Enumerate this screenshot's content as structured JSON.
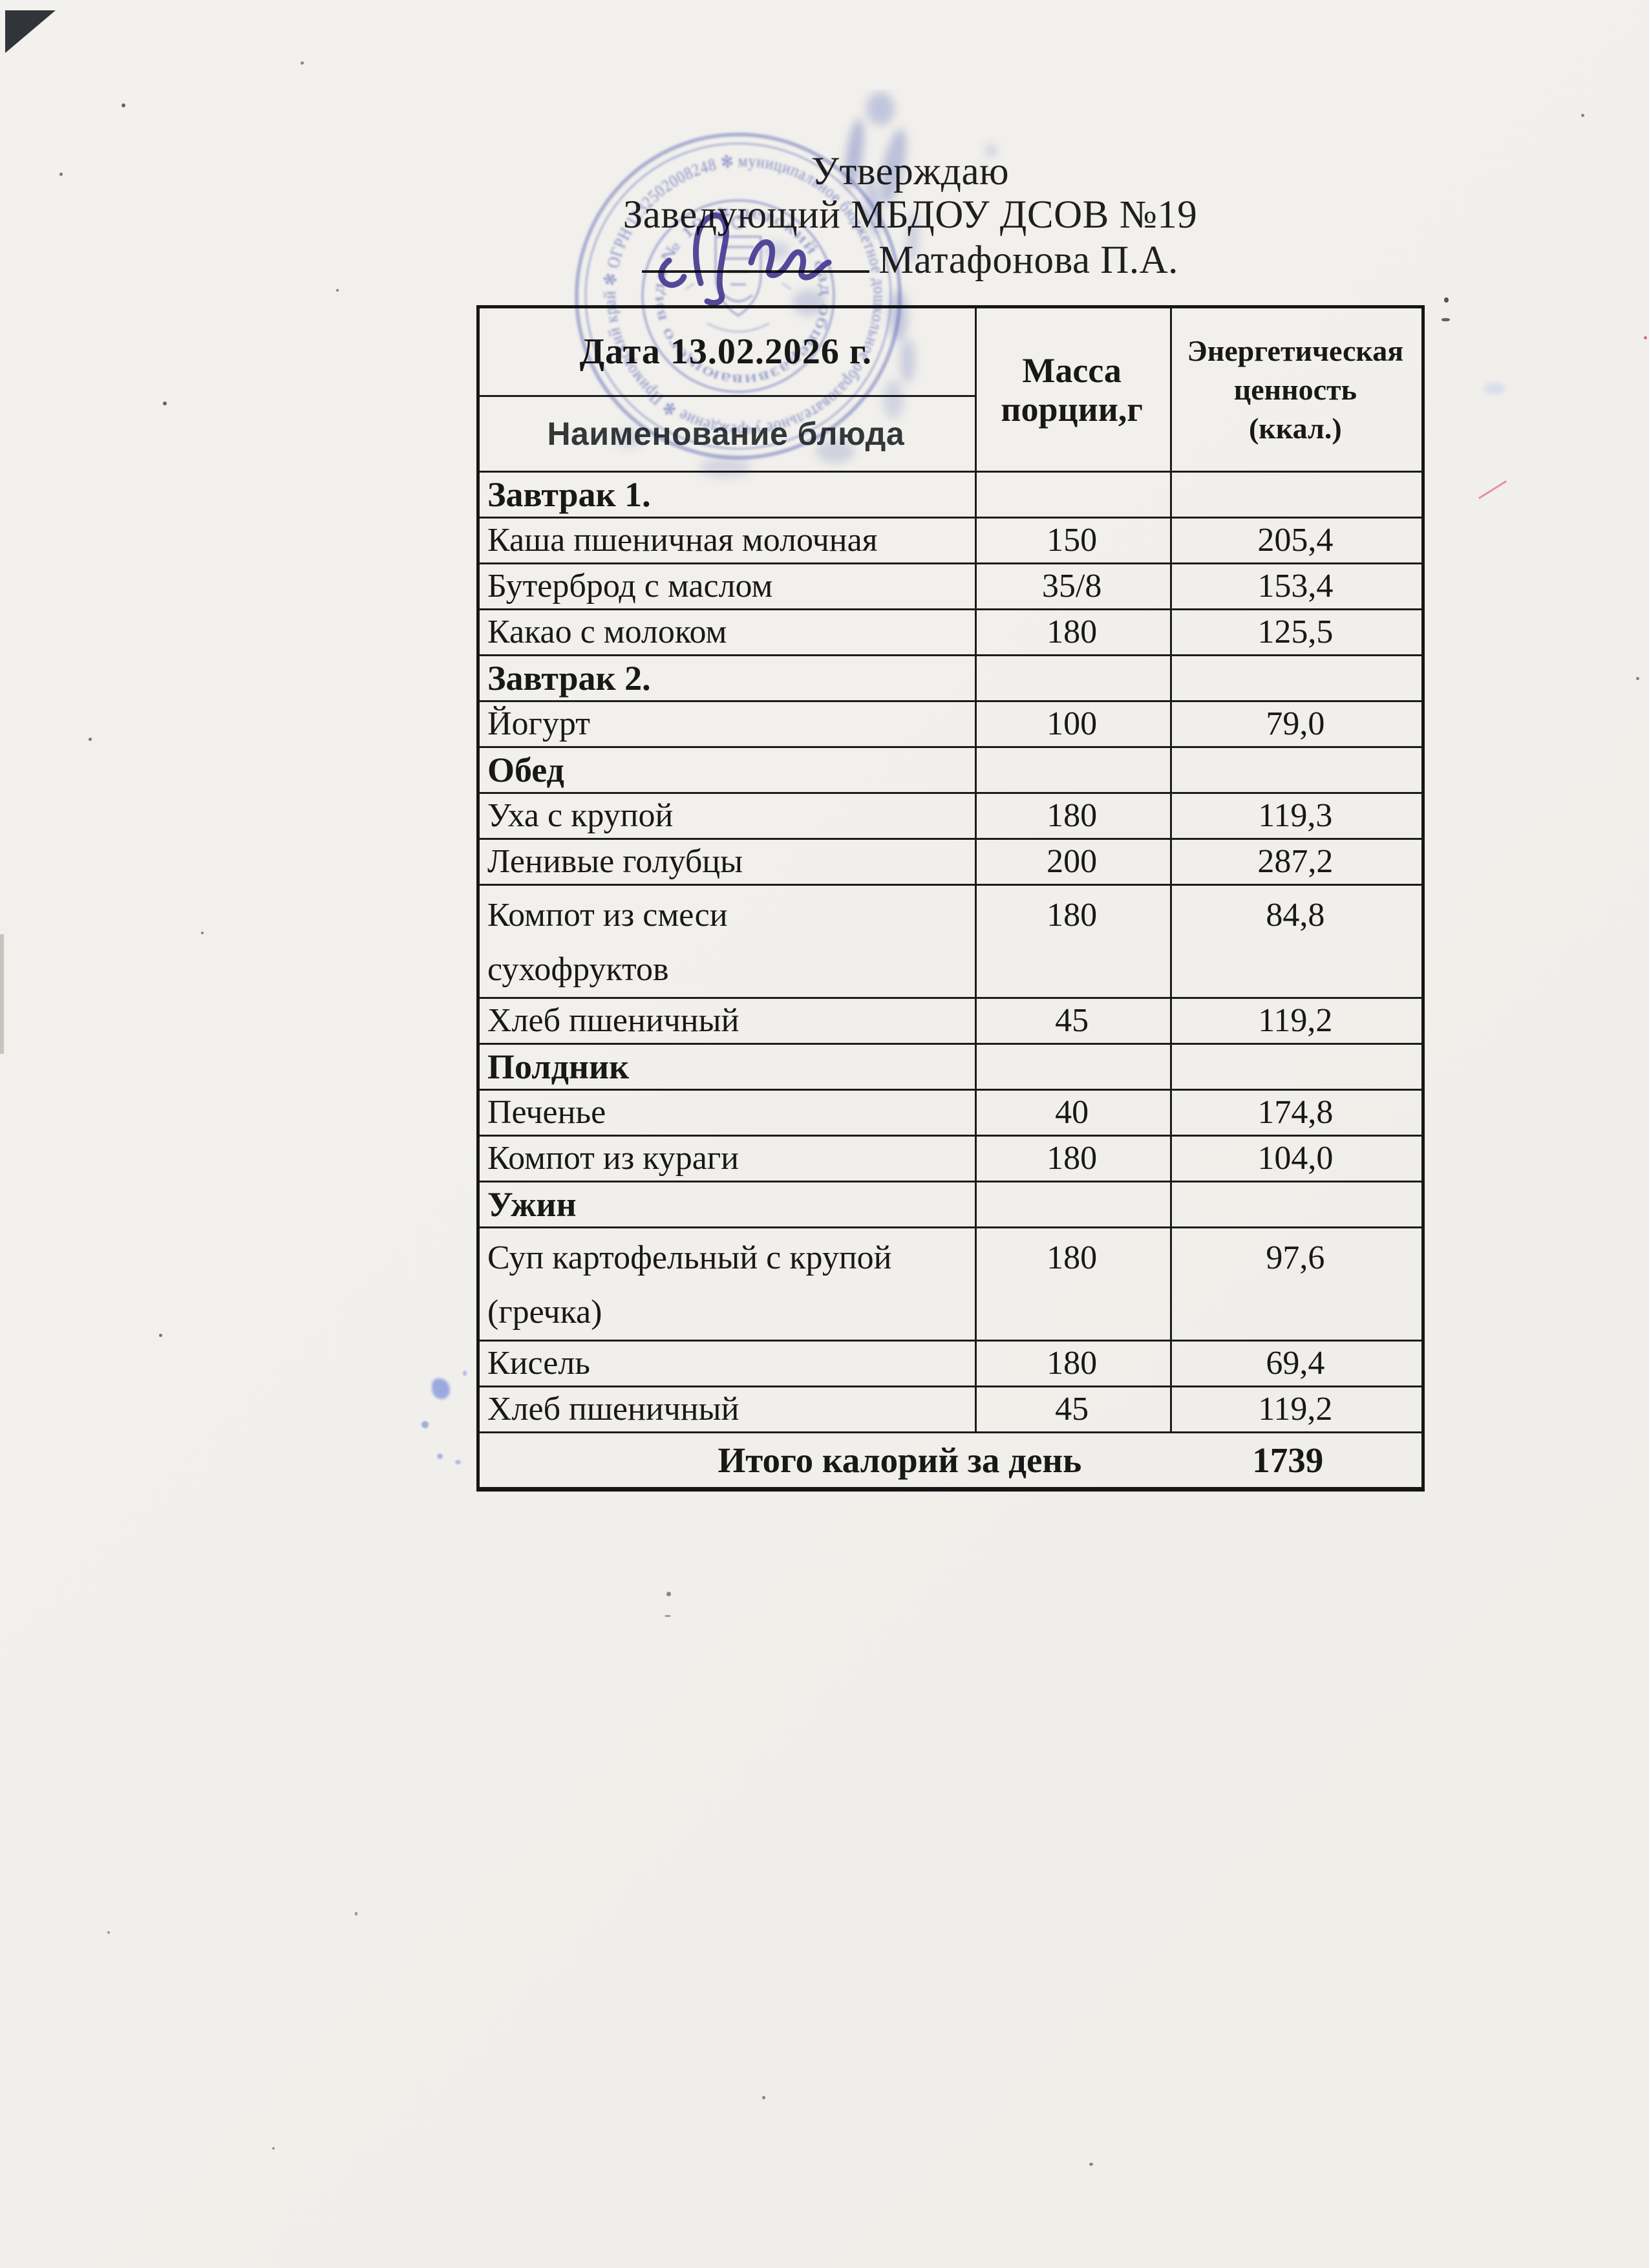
{
  "document": {
    "approval": {
      "line1": "Утверждаю",
      "line2": "Заведующий МБДОУ ДСОВ №19",
      "signatory": "Матафонова П.А."
    },
    "stamp": {
      "ink_color": "#5b6cc6",
      "ring_outer_text": "муниципальное бюджетное дошкольное образовательное учреждение ✻ Приморский край ✻ ОГРН 1132502008248 ✻",
      "ring_inner_text": "детский сад общеразвивающего вида № 19 ✻"
    },
    "table": {
      "date_label": "Дата 13.02.2026 г.",
      "dish_header": "Наименование блюда",
      "mass_header": "Масса\nпорции,г",
      "energy_header": "Энергетическая\nценность\n(ккал.)",
      "rows": [
        {
          "type": "section",
          "name": "Завтрак 1.",
          "mass": "",
          "kcal": ""
        },
        {
          "type": "dish",
          "name": "Каша пшеничная молочная",
          "mass": "150",
          "kcal": "205,4"
        },
        {
          "type": "dish",
          "name": "Бутерброд с маслом",
          "mass": "35/8",
          "kcal": "153,4"
        },
        {
          "type": "dish",
          "name": "Какао с молоком",
          "mass": "180",
          "kcal": "125,5"
        },
        {
          "type": "section",
          "name": "Завтрак 2.",
          "mass": "",
          "kcal": ""
        },
        {
          "type": "dish",
          "name": "Йогурт",
          "mass": "100",
          "kcal": "79,0"
        },
        {
          "type": "section",
          "name": "Обед",
          "mass": "",
          "kcal": ""
        },
        {
          "type": "dish",
          "name": "Уха с крупой",
          "mass": "180",
          "kcal": "119,3"
        },
        {
          "type": "dish",
          "name": "Ленивые голубцы",
          "mass": "200",
          "kcal": "287,2"
        },
        {
          "type": "dish",
          "name": "Компот из смеси\nсухофруктов",
          "mass": "180",
          "kcal": "84,8",
          "tall": true
        },
        {
          "type": "dish",
          "name": "Хлеб пшеничный",
          "mass": "45",
          "kcal": "119,2"
        },
        {
          "type": "section",
          "name": "Полдник",
          "mass": "",
          "kcal": ""
        },
        {
          "type": "dish",
          "name": "Печенье",
          "mass": "40",
          "kcal": "174,8"
        },
        {
          "type": "dish",
          "name": "Компот из кураги",
          "mass": "180",
          "kcal": "104,0"
        },
        {
          "type": "section",
          "name": "Ужин",
          "mass": "",
          "kcal": ""
        },
        {
          "type": "dish",
          "name": "Суп картофельный с крупой\n(гречка)",
          "mass": "180",
          "kcal": "97,6",
          "tall": true
        },
        {
          "type": "dish",
          "name": "Кисель",
          "mass": "180",
          "kcal": "69,4"
        },
        {
          "type": "dish",
          "name": "Хлеб пшеничный",
          "mass": "45",
          "kcal": "119,2"
        }
      ],
      "total_label": "Итого калорий за день",
      "total_value": "1739"
    }
  }
}
